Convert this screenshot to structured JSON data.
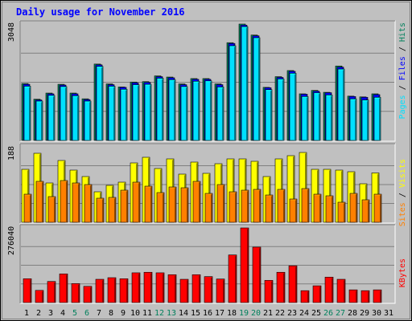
{
  "chart_data": {
    "type": "bar",
    "title": "Daily usage for November 2016",
    "categories": [
      "1",
      "2",
      "3",
      "4",
      "5",
      "6",
      "7",
      "8",
      "9",
      "10",
      "11",
      "12",
      "13",
      "14",
      "15",
      "16",
      "17",
      "18",
      "19",
      "20",
      "21",
      "22",
      "23",
      "24",
      "25",
      "26",
      "27",
      "28",
      "29",
      "30",
      "31"
    ],
    "weekend_days": [
      "5",
      "6",
      "12",
      "13",
      "19",
      "20",
      "26",
      "27"
    ],
    "panels": [
      {
        "id": "top",
        "max_label": "3048",
        "ylim": [
          0,
          3048
        ],
        "legend": [
          "Pages",
          "Files",
          "Hits"
        ],
        "legend_colors": [
          "#00e0ff",
          "#0000ff",
          "#00805c"
        ],
        "series": [
          {
            "name": "Hits",
            "color": "#00805c",
            "values": [
              1490,
              1080,
              1240,
              1470,
              1240,
              1090,
              2000,
              1480,
              1400,
              1530,
              1540,
              1690,
              1660,
              1480,
              1620,
              1620,
              1480,
              2560,
              3048,
              2760,
              1390,
              1670,
              1830,
              1220,
              1310,
              1260,
              1950,
              1160,
              1140,
              1220,
              null
            ]
          },
          {
            "name": "Files",
            "color": "#0000ff",
            "values": [
              1470,
              1060,
              1220,
              1450,
              1220,
              1070,
              1980,
              1460,
              1390,
              1510,
              1520,
              1670,
              1640,
              1460,
              1600,
              1600,
              1460,
              2540,
              3020,
              2740,
              1380,
              1650,
              1810,
              1210,
              1290,
              1250,
              1920,
              1150,
              1130,
              1200,
              null
            ]
          },
          {
            "name": "Pages",
            "color": "#00e0ff",
            "values": [
              1420,
              1030,
              1180,
              1410,
              1170,
              1030,
              1940,
              1420,
              1340,
              1460,
              1470,
              1630,
              1590,
              1410,
              1550,
              1560,
              1400,
              2480,
              2980,
              2690,
              1330,
              1610,
              1760,
              1150,
              1250,
              1190,
              1870,
              1090,
              1060,
              1130,
              null
            ]
          }
        ]
      },
      {
        "id": "middle",
        "max_label": "188",
        "ylim": [
          0,
          188
        ],
        "legend": [
          "Sites",
          "Visits"
        ],
        "legend_colors": [
          "#ff8000",
          "#ffff00"
        ],
        "series": [
          {
            "name": "Visits",
            "color": "#ffff00",
            "values": [
              132,
              172,
              98,
              154,
              130,
              114,
              76,
              92,
              100,
              148,
              162,
              134,
              158,
              120,
              150,
              122,
              146,
              158,
              158,
              152,
              114,
              158,
              166,
              174,
              132,
              132,
              130,
              126,
              96,
              123,
              null
            ]
          },
          {
            "name": "Sites",
            "color": "#ff8000",
            "values": [
              70,
              102,
              64,
              104,
              98,
              94,
              60,
              62,
              80,
              100,
              90,
              74,
              88,
              86,
              102,
              72,
              94,
              76,
              80,
              82,
              68,
              82,
              58,
              84,
              70,
              66,
              50,
              72,
              56,
              70,
              null
            ]
          }
        ]
      },
      {
        "id": "bottom",
        "max_label": "276040",
        "ylim": [
          0,
          276040
        ],
        "legend": [
          "KBytes"
        ],
        "legend_colors": [
          "#ff0000"
        ],
        "series": [
          {
            "name": "KBytes",
            "color": "#ff0000",
            "values": [
              88000,
              45000,
              78000,
              106000,
              70000,
              60000,
              86000,
              92000,
              88000,
              110000,
              112000,
              110000,
              103000,
              86000,
              103000,
              96000,
              87000,
              176000,
              276040,
              205000,
              82000,
              112000,
              136000,
              44000,
              62000,
              94000,
              86000,
              47000,
              44000,
              47000,
              null
            ]
          }
        ]
      }
    ]
  }
}
